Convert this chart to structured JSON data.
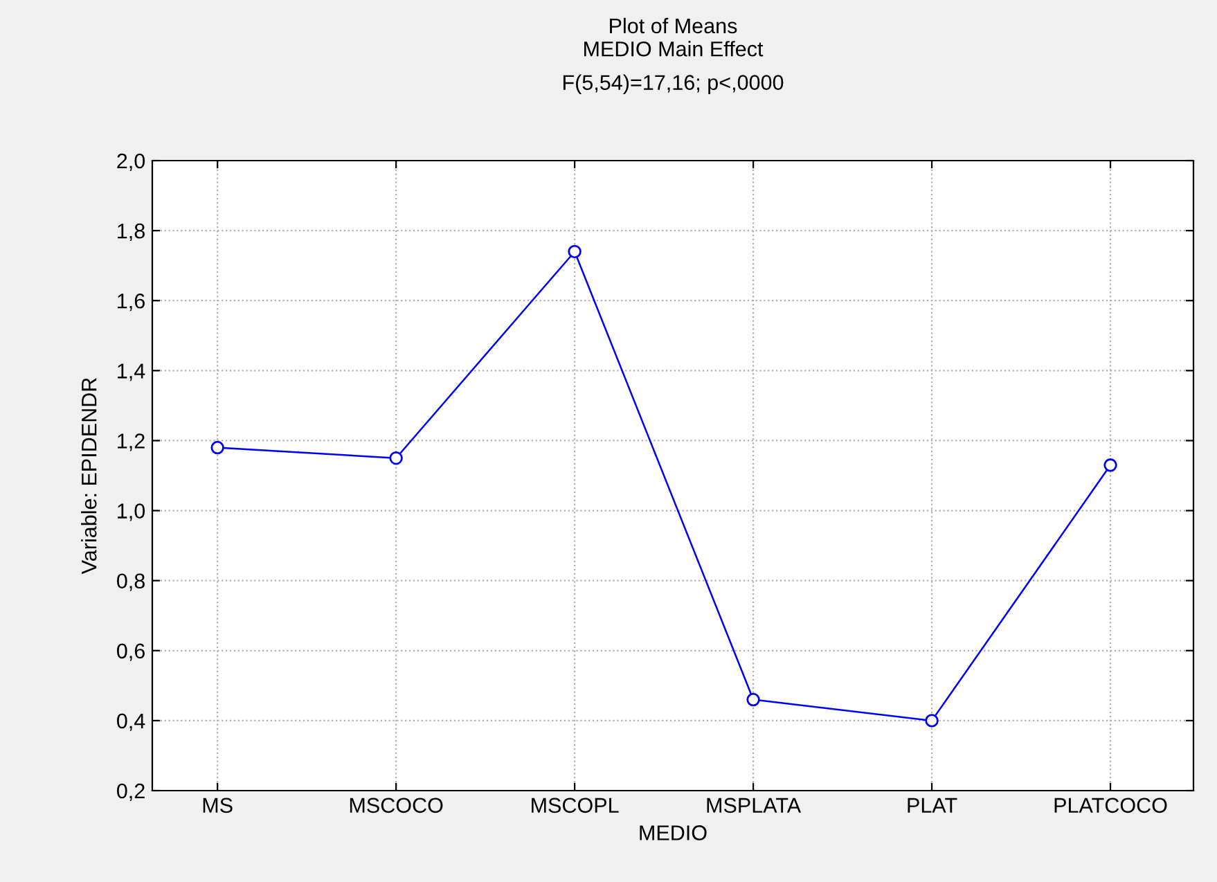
{
  "chart_data": {
    "type": "line",
    "title": "Plot of Means",
    "subtitle": "MEDIO Main Effect\nF(5,54)=17,16; p<,0000",
    "xlabel": "MEDIO",
    "ylabel": "Variable: EPIDENDR",
    "categories": [
      "MS",
      "MSCOCO",
      "MSCOPL",
      "MSPLATA",
      "PLAT",
      "PLATCOCO"
    ],
    "series": [
      {
        "color": "#0000ff",
        "values": [
          1.18,
          1.15,
          1.74,
          0.46,
          0.4,
          1.13
        ]
      }
    ],
    "ylim": [
      0.2,
      2.0
    ],
    "yticks": [
      {
        "value": 0.2,
        "label": "0,2"
      },
      {
        "value": 0.4,
        "label": "0,4"
      },
      {
        "value": 0.6,
        "label": "0,6"
      },
      {
        "value": 0.8,
        "label": "0,8"
      },
      {
        "value": 1.0,
        "label": "1,0"
      },
      {
        "value": 1.2,
        "label": "1,2"
      },
      {
        "value": 1.4,
        "label": "1,4"
      },
      {
        "value": 1.6,
        "label": "1,6"
      },
      {
        "value": 1.8,
        "label": "1,8"
      },
      {
        "value": 2.0,
        "label": "2,0"
      }
    ],
    "grid": true,
    "marker": "circle",
    "line_style": "solid",
    "legend": false
  }
}
